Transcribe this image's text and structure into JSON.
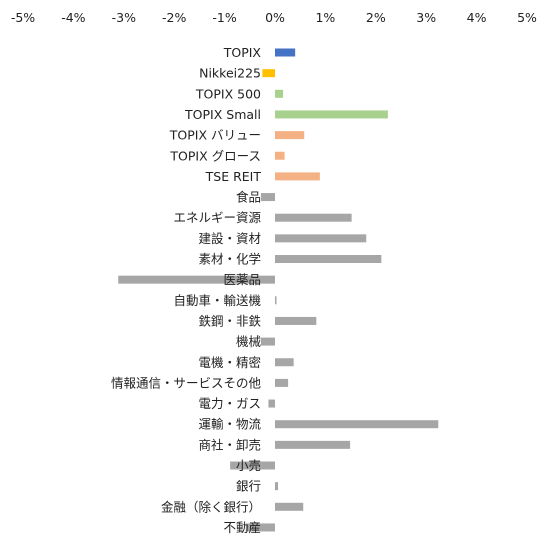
{
  "chart_data": {
    "type": "bar",
    "orientation": "horizontal",
    "x_axis_position": "top",
    "xlim": [
      -0.05,
      0.05
    ],
    "x_ticks": [
      -0.05,
      -0.04,
      -0.03,
      -0.02,
      -0.01,
      0,
      0.01,
      0.02,
      0.03,
      0.04,
      0.05
    ],
    "x_tick_labels": [
      "-5%",
      "-4%",
      "-3%",
      "-2%",
      "-1%",
      "0%",
      "1%",
      "2%",
      "3%",
      "4%",
      "5%"
    ],
    "grid": false,
    "legend": "none",
    "categories": [
      "TOPIX",
      "Nikkei225",
      "TOPIX 500",
      "TOPIX Small",
      "TOPIX バリュー",
      "TOPIX グロース",
      "TSE REIT",
      "食品",
      "エネルギー資源",
      "建設・資材",
      "素材・化学",
      "医薬品",
      "自動車・輸送機",
      "鉄鋼・非鉄",
      "機械",
      "電機・精密",
      "情報通信・サービスその他",
      "電力・ガス",
      "運輸・物流",
      "商社・卸売",
      "小売",
      "銀行",
      "金融（除く銀行）",
      "不動産"
    ],
    "values": [
      0.004,
      -0.0025,
      0.0016,
      0.0224,
      0.0058,
      0.0019,
      0.0089,
      -0.0028,
      0.0152,
      0.0181,
      0.0211,
      -0.0311,
      0.0003,
      0.0082,
      -0.0028,
      0.0037,
      0.0026,
      -0.0013,
      0.0324,
      0.0149,
      -0.0089,
      0.0006,
      0.0056,
      -0.0058
    ],
    "colors": [
      "#4472c4",
      "#ffc000",
      "#a9d18e",
      "#a9d18e",
      "#f4b183",
      "#f4b183",
      "#f4b183",
      "#a6a6a6",
      "#a6a6a6",
      "#a6a6a6",
      "#a6a6a6",
      "#a6a6a6",
      "#a6a6a6",
      "#a6a6a6",
      "#a6a6a6",
      "#a6a6a6",
      "#a6a6a6",
      "#a6a6a6",
      "#a6a6a6",
      "#a6a6a6",
      "#a6a6a6",
      "#a6a6a6",
      "#a6a6a6",
      "#a6a6a6"
    ],
    "title": "",
    "xlabel": "",
    "ylabel": ""
  }
}
